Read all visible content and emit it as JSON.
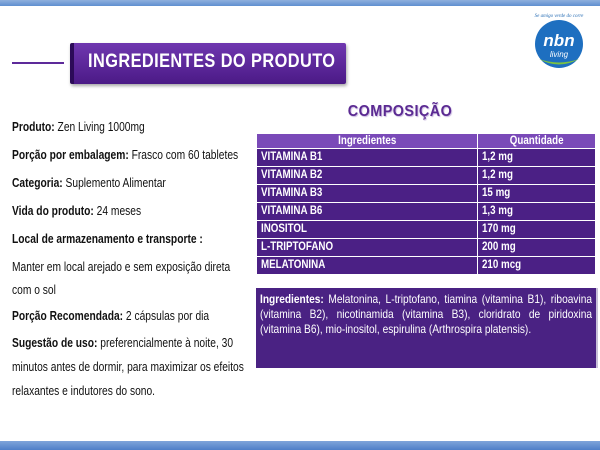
{
  "header": {
    "title": "INGREDIENTES DO PRODUTO"
  },
  "logo": {
    "brand": "nbn",
    "sub": "living",
    "tagline": "Se amigo verde do corre"
  },
  "details": [
    {
      "label": "Produto:",
      "value": " Zen Living 1000mg"
    },
    {
      "label": "Porção por embalagem:",
      "value": " Frasco com 60 tabletes"
    },
    {
      "label": "Categoria:",
      "value": " Suplemento Alimentar"
    },
    {
      "label": "Vida do produto:",
      "value": " 24 meses"
    },
    {
      "label": "Local de armazenamento e transporte :",
      "value": ""
    },
    {
      "label": "",
      "value": "Manter em local arejado e sem exposição direta"
    },
    {
      "label": "",
      "value": "com o sol"
    },
    {
      "label": "Porção Recomendada:",
      "value": " 2 cápsulas por dia"
    },
    {
      "label": "Sugestão de uso:",
      "value": " preferencialmente à noite, 30"
    },
    {
      "label": "",
      "value": "minutos antes de dormir, para maximizar os efeitos"
    },
    {
      "label": "",
      "value": "relaxantes e indutores do sono."
    }
  ],
  "composicao": {
    "title": "COMPOSIÇÃO",
    "headers": [
      "Ingredientes",
      "Quantidade"
    ],
    "rows": [
      [
        "VITAMINA B1",
        "1,2 mg"
      ],
      [
        "VITAMINA B2",
        "1,2 mg"
      ],
      [
        "VITAMINA B3",
        "15 mg"
      ],
      [
        "VITAMINA B6",
        "1,3 mg"
      ],
      [
        "INOSITOL",
        "170 mg"
      ],
      [
        "L-TRIPTOFANO",
        "200 mg"
      ],
      [
        "MELATONINA",
        "210 mcg"
      ]
    ]
  },
  "ingredientes": {
    "label": "Ingredientes:",
    "text": " Melatonina, L-triptofano, tiamina (vitamina B1), riboavina (vitamina B2), nicotinamida (vitamina B3), cloridrato de piridoxina (vitamina B6), mio-inositol, espirulina (Arthrospira platensis)."
  },
  "colors": {
    "purple_dark": "#4b2085",
    "purple_header": "#7a4ab8",
    "blue_bar": "#5f8fd0"
  }
}
